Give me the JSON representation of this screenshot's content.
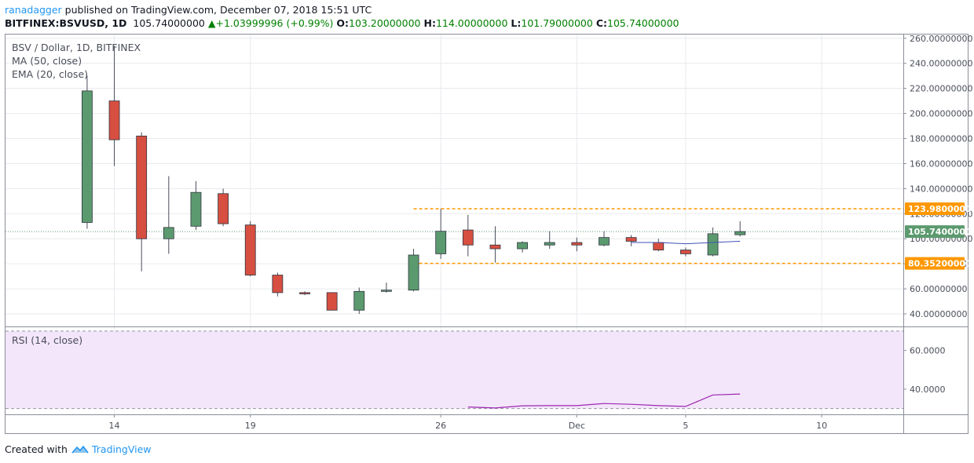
{
  "header": {
    "user": "ranadagger",
    "published": " published on TradingView.com, December 07, 2018 15:51 UTC",
    "symbol": "BITFINEX:BSVUSD, 1D",
    "last": "105.74000000",
    "change_arrow": "▲",
    "change": "+1.03999996 (+0.99%)",
    "o_label": "O:",
    "o": "103.20000000",
    "h_label": "H:",
    "h": "114.00000000",
    "l_label": "L:",
    "l": "101.79000000",
    "c_label": "C:",
    "c": "105.74000000"
  },
  "legend": {
    "title": "BSV / Dollar, 1D, BITFINEX",
    "ma": "MA (50, close)",
    "ema": "EMA (20, close)",
    "rsi": "RSI (14, close)"
  },
  "footer": {
    "created": "Created with",
    "brand": "TradingView"
  },
  "colors": {
    "up": "#5b9a6e",
    "down": "#d64f40",
    "level": "#ff9800",
    "rsi_band": "#f3e6fb",
    "rsi_line": "#9c27b0",
    "ma_line": "#3f51b5",
    "last_tag": "#5b9a6e"
  },
  "chart_data": [
    {
      "type": "candlestick",
      "title": "BSV / Dollar, 1D, BITFINEX",
      "ylim": [
        30,
        263
      ],
      "y_ticks": [
        40,
        60,
        80,
        100,
        120,
        140,
        160,
        180,
        200,
        220,
        240,
        260
      ],
      "y_tick_labels": [
        "40.00000000",
        "60.00000000",
        "80.00000000",
        "100.00000000",
        "120.00000000",
        "140.00000000",
        "160.00000000",
        "180.00000000",
        "200.00000000",
        "220.00000000",
        "240.00000000",
        "260.00000000"
      ],
      "x_range": [
        "2018-11-10",
        "2018-12-13"
      ],
      "x_ticks": [
        {
          "date": "2018-11-14",
          "label": "14"
        },
        {
          "date": "2018-11-19",
          "label": "19"
        },
        {
          "date": "2018-11-26",
          "label": "26"
        },
        {
          "date": "2018-12-01",
          "label": "Dec"
        },
        {
          "date": "2018-12-05",
          "label": "5"
        },
        {
          "date": "2018-12-10",
          "label": "10"
        }
      ],
      "candles": [
        {
          "date": "2018-11-13",
          "o": 113,
          "h": 230,
          "l": 108,
          "c": 218
        },
        {
          "date": "2018-11-14",
          "o": 210,
          "h": 254,
          "l": 158,
          "c": 179
        },
        {
          "date": "2018-11-15",
          "o": 182,
          "h": 185,
          "l": 74,
          "c": 100
        },
        {
          "date": "2018-11-16",
          "o": 100,
          "h": 150,
          "l": 88,
          "c": 109
        },
        {
          "date": "2018-11-17",
          "o": 110,
          "h": 146,
          "l": 107,
          "c": 137
        },
        {
          "date": "2018-11-18",
          "o": 136,
          "h": 140,
          "l": 110,
          "c": 112
        },
        {
          "date": "2018-11-19",
          "o": 111,
          "h": 114,
          "l": 70,
          "c": 71
        },
        {
          "date": "2018-11-20",
          "o": 71,
          "h": 73,
          "l": 54,
          "c": 57
        },
        {
          "date": "2018-11-21",
          "o": 57,
          "h": 58,
          "l": 55,
          "c": 56
        },
        {
          "date": "2018-11-22",
          "o": 57,
          "h": 57,
          "l": 43,
          "c": 43
        },
        {
          "date": "2018-11-23",
          "o": 43,
          "h": 61,
          "l": 40,
          "c": 58
        },
        {
          "date": "2018-11-24",
          "o": 58,
          "h": 65,
          "l": 57,
          "c": 59
        },
        {
          "date": "2018-11-25",
          "o": 59,
          "h": 92,
          "l": 58,
          "c": 87
        },
        {
          "date": "2018-11-26",
          "o": 88,
          "h": 124,
          "l": 84,
          "c": 106
        },
        {
          "date": "2018-11-27",
          "o": 107,
          "h": 119,
          "l": 86,
          "c": 95
        },
        {
          "date": "2018-11-28",
          "o": 95,
          "h": 110,
          "l": 81,
          "c": 92
        },
        {
          "date": "2018-11-29",
          "o": 92,
          "h": 98,
          "l": 89,
          "c": 97
        },
        {
          "date": "2018-11-30",
          "o": 95,
          "h": 106,
          "l": 92,
          "c": 97
        },
        {
          "date": "2018-12-01",
          "o": 97,
          "h": 101,
          "l": 90,
          "c": 95
        },
        {
          "date": "2018-12-02",
          "o": 95,
          "h": 106,
          "l": 94,
          "c": 101
        },
        {
          "date": "2018-12-03",
          "o": 101,
          "h": 103,
          "l": 94,
          "c": 98
        },
        {
          "date": "2018-12-04",
          "o": 97,
          "h": 100,
          "l": 90,
          "c": 91
        },
        {
          "date": "2018-12-05",
          "o": 91,
          "h": 93,
          "l": 86,
          "c": 88
        },
        {
          "date": "2018-12-06",
          "o": 87,
          "h": 109,
          "l": 86,
          "c": 104
        },
        {
          "date": "2018-12-07",
          "o": 103.2,
          "h": 114,
          "l": 101.79,
          "c": 105.74
        }
      ],
      "ma_series": {
        "name": "MA (50, close)",
        "points": [
          {
            "date": "2018-12-03",
            "value": 97
          },
          {
            "date": "2018-12-04",
            "value": 97
          },
          {
            "date": "2018-12-05",
            "value": 96
          },
          {
            "date": "2018-12-06",
            "value": 97
          },
          {
            "date": "2018-12-07",
            "value": 98
          }
        ]
      },
      "levels": [
        {
          "value": 123.98,
          "label": "123.98000000",
          "from": "2018-11-25"
        },
        {
          "value": 80.352,
          "label": "80.35200000",
          "from": "2018-11-25"
        }
      ],
      "last_price": {
        "value": 105.74,
        "label": "105.74000000"
      }
    },
    {
      "type": "line",
      "title": "RSI (14, close)",
      "ylim": [
        27,
        72
      ],
      "y_ticks": [
        40,
        60
      ],
      "y_tick_labels": [
        "40.0000",
        "60.0000"
      ],
      "band": [
        30,
        70
      ],
      "series": [
        {
          "name": "RSI (14, close)",
          "points": [
            {
              "date": "2018-11-27",
              "value": 30.8
            },
            {
              "date": "2018-11-28",
              "value": 30.3
            },
            {
              "date": "2018-11-29",
              "value": 31.4
            },
            {
              "date": "2018-11-30",
              "value": 31.5
            },
            {
              "date": "2018-12-01",
              "value": 31.5
            },
            {
              "date": "2018-12-02",
              "value": 32.6
            },
            {
              "date": "2018-12-03",
              "value": 32.2
            },
            {
              "date": "2018-12-04",
              "value": 31.5
            },
            {
              "date": "2018-12-05",
              "value": 31.1
            },
            {
              "date": "2018-12-06",
              "value": 37.0
            },
            {
              "date": "2018-12-07",
              "value": 37.5
            }
          ]
        }
      ]
    }
  ]
}
